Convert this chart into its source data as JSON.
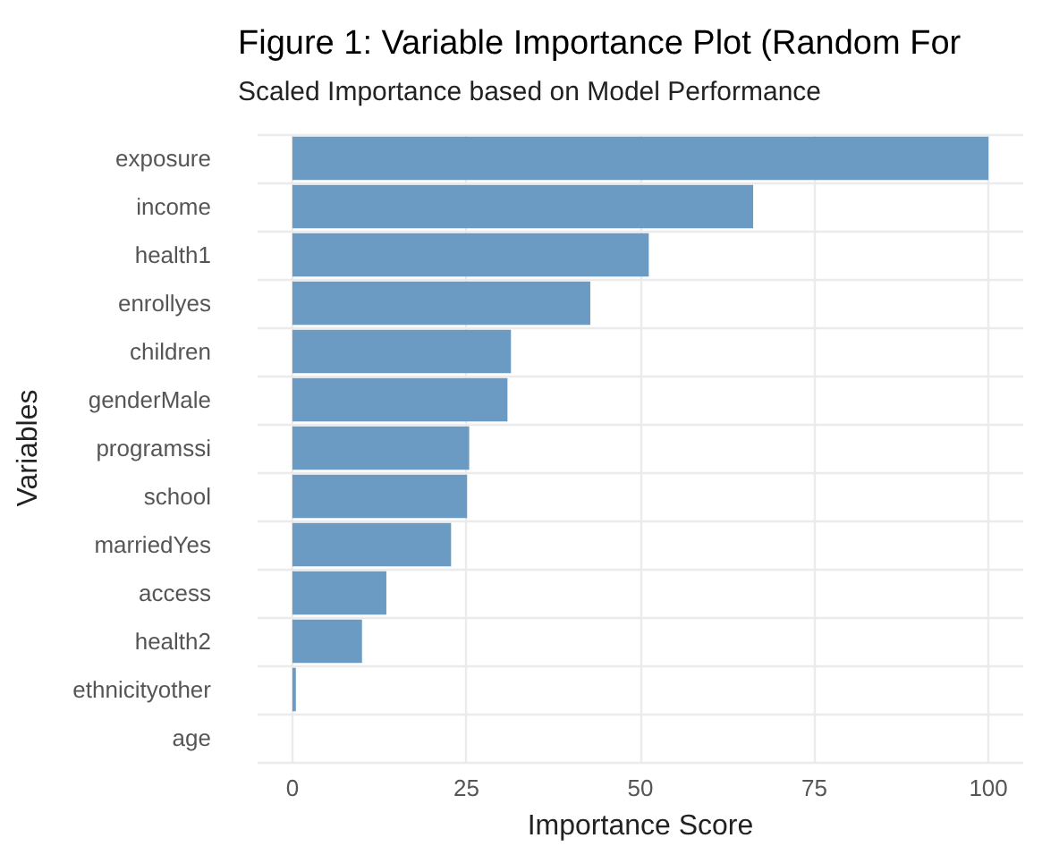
{
  "chart_data": {
    "type": "bar",
    "orientation": "horizontal",
    "title": "Figure 1: Variable Importance Plot (Random For",
    "subtitle": "Scaled Importance based on Model Performance",
    "xlabel": "Importance Score",
    "ylabel": "Variables",
    "categories": [
      "exposure",
      "income",
      "health1",
      "enrollyes",
      "children",
      "genderMale",
      "programssi",
      "school",
      "marriedYes",
      "access",
      "health2",
      "ethnicityother",
      "age"
    ],
    "values": [
      100,
      66.2,
      51.2,
      42.8,
      31.4,
      30.9,
      25.4,
      25.1,
      22.8,
      13.5,
      10.0,
      0.5,
      0
    ],
    "color": "#6b9bc3",
    "xlim": [
      -5,
      105
    ],
    "xticks": [
      0,
      25,
      50,
      75,
      100
    ],
    "grid": true
  }
}
